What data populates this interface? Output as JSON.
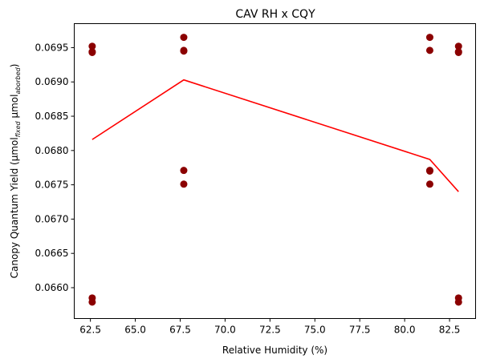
{
  "chart_data": {
    "type": "scatter",
    "title": "CAV RH x CQY",
    "xlabel": "Relative Humidity (%)",
    "ylabel": {
      "prefix": "Canopy Quantum Yield (µmol",
      "sub1": "fixed",
      "middle": " µmol",
      "sub2": "aborbed",
      "suffix": ")"
    },
    "xlim": [
      61.6,
      83.95
    ],
    "ylim": [
      0.06555,
      0.06985
    ],
    "xticks": [
      "62.5",
      "65.0",
      "67.5",
      "70.0",
      "72.5",
      "75.0",
      "77.5",
      "80.0",
      "82.5"
    ],
    "xtick_values": [
      62.5,
      65.0,
      67.5,
      70.0,
      72.5,
      75.0,
      77.5,
      80.0,
      82.5
    ],
    "yticks": [
      "0.0660",
      "0.0665",
      "0.0670",
      "0.0675",
      "0.0680",
      "0.0685",
      "0.0690",
      "0.0695"
    ],
    "ytick_values": [
      0.066,
      0.0665,
      0.067,
      0.0675,
      0.068,
      0.0685,
      0.069,
      0.0695
    ],
    "grid": false,
    "series": [
      {
        "type": "scatter",
        "color": "#8b0000",
        "points": [
          [
            62.6,
            0.06952
          ],
          [
            62.6,
            0.06944
          ],
          [
            62.6,
            0.06943
          ],
          [
            62.6,
            0.06585
          ],
          [
            62.6,
            0.06579
          ],
          [
            67.7,
            0.06965
          ],
          [
            67.7,
            0.06946
          ],
          [
            67.7,
            0.06945
          ],
          [
            67.7,
            0.06771
          ],
          [
            67.7,
            0.06751
          ],
          [
            81.4,
            0.06965
          ],
          [
            81.4,
            0.06946
          ],
          [
            81.4,
            0.06771
          ],
          [
            81.4,
            0.0677
          ],
          [
            81.4,
            0.06751
          ],
          [
            83.0,
            0.06952
          ],
          [
            83.0,
            0.06944
          ],
          [
            83.0,
            0.06943
          ],
          [
            83.0,
            0.06585
          ],
          [
            83.0,
            0.06579
          ]
        ]
      },
      {
        "type": "line",
        "color": "#ff0000",
        "points": [
          [
            62.6,
            0.06816
          ],
          [
            67.7,
            0.06903
          ],
          [
            81.4,
            0.06787
          ],
          [
            83.0,
            0.0674
          ]
        ]
      }
    ]
  }
}
